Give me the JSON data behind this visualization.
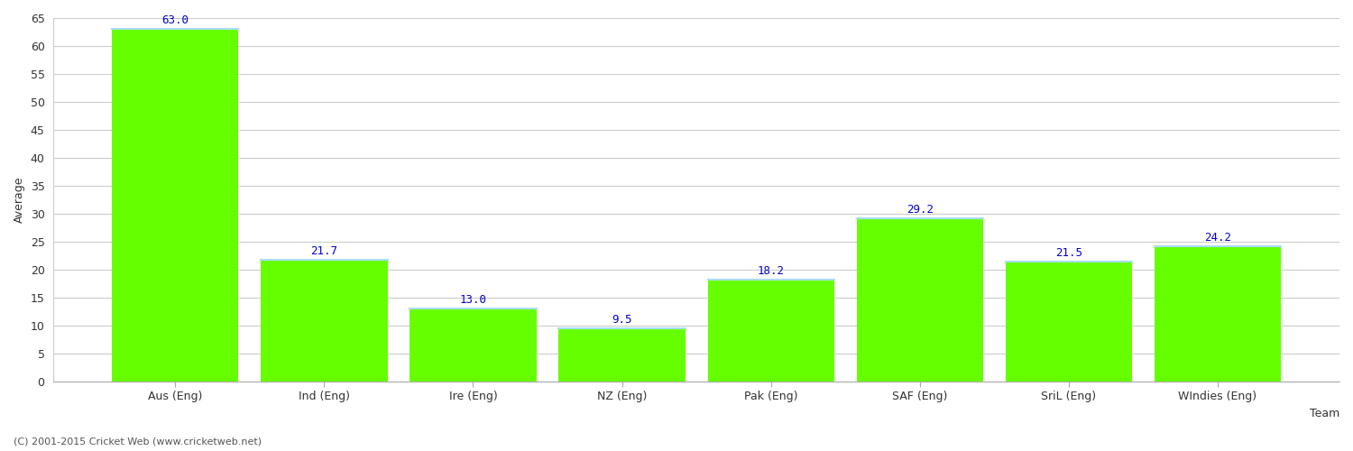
{
  "categories": [
    "Aus (Eng)",
    "Ind (Eng)",
    "Ire (Eng)",
    "NZ (Eng)",
    "Pak (Eng)",
    "SAF (Eng)",
    "SriL (Eng)",
    "WIndies (Eng)"
  ],
  "values": [
    63.0,
    21.7,
    13.0,
    9.5,
    18.2,
    29.2,
    21.5,
    24.2
  ],
  "bar_color": "#66ff00",
  "bar_edge_top_color": "#aaddff",
  "bar_edge_color": "none",
  "label_color": "#0000cc",
  "xlabel": "Team",
  "ylabel": "Average",
  "ylim": [
    0,
    65
  ],
  "yticks": [
    0,
    5,
    10,
    15,
    20,
    25,
    30,
    35,
    40,
    45,
    50,
    55,
    60,
    65
  ],
  "grid_color": "#cccccc",
  "background_color": "#ffffff",
  "footnote": "(C) 2001-2015 Cricket Web (www.cricketweb.net)",
  "label_fontsize": 9,
  "axis_fontsize": 9,
  "tick_fontsize": 9,
  "bar_width": 0.85
}
